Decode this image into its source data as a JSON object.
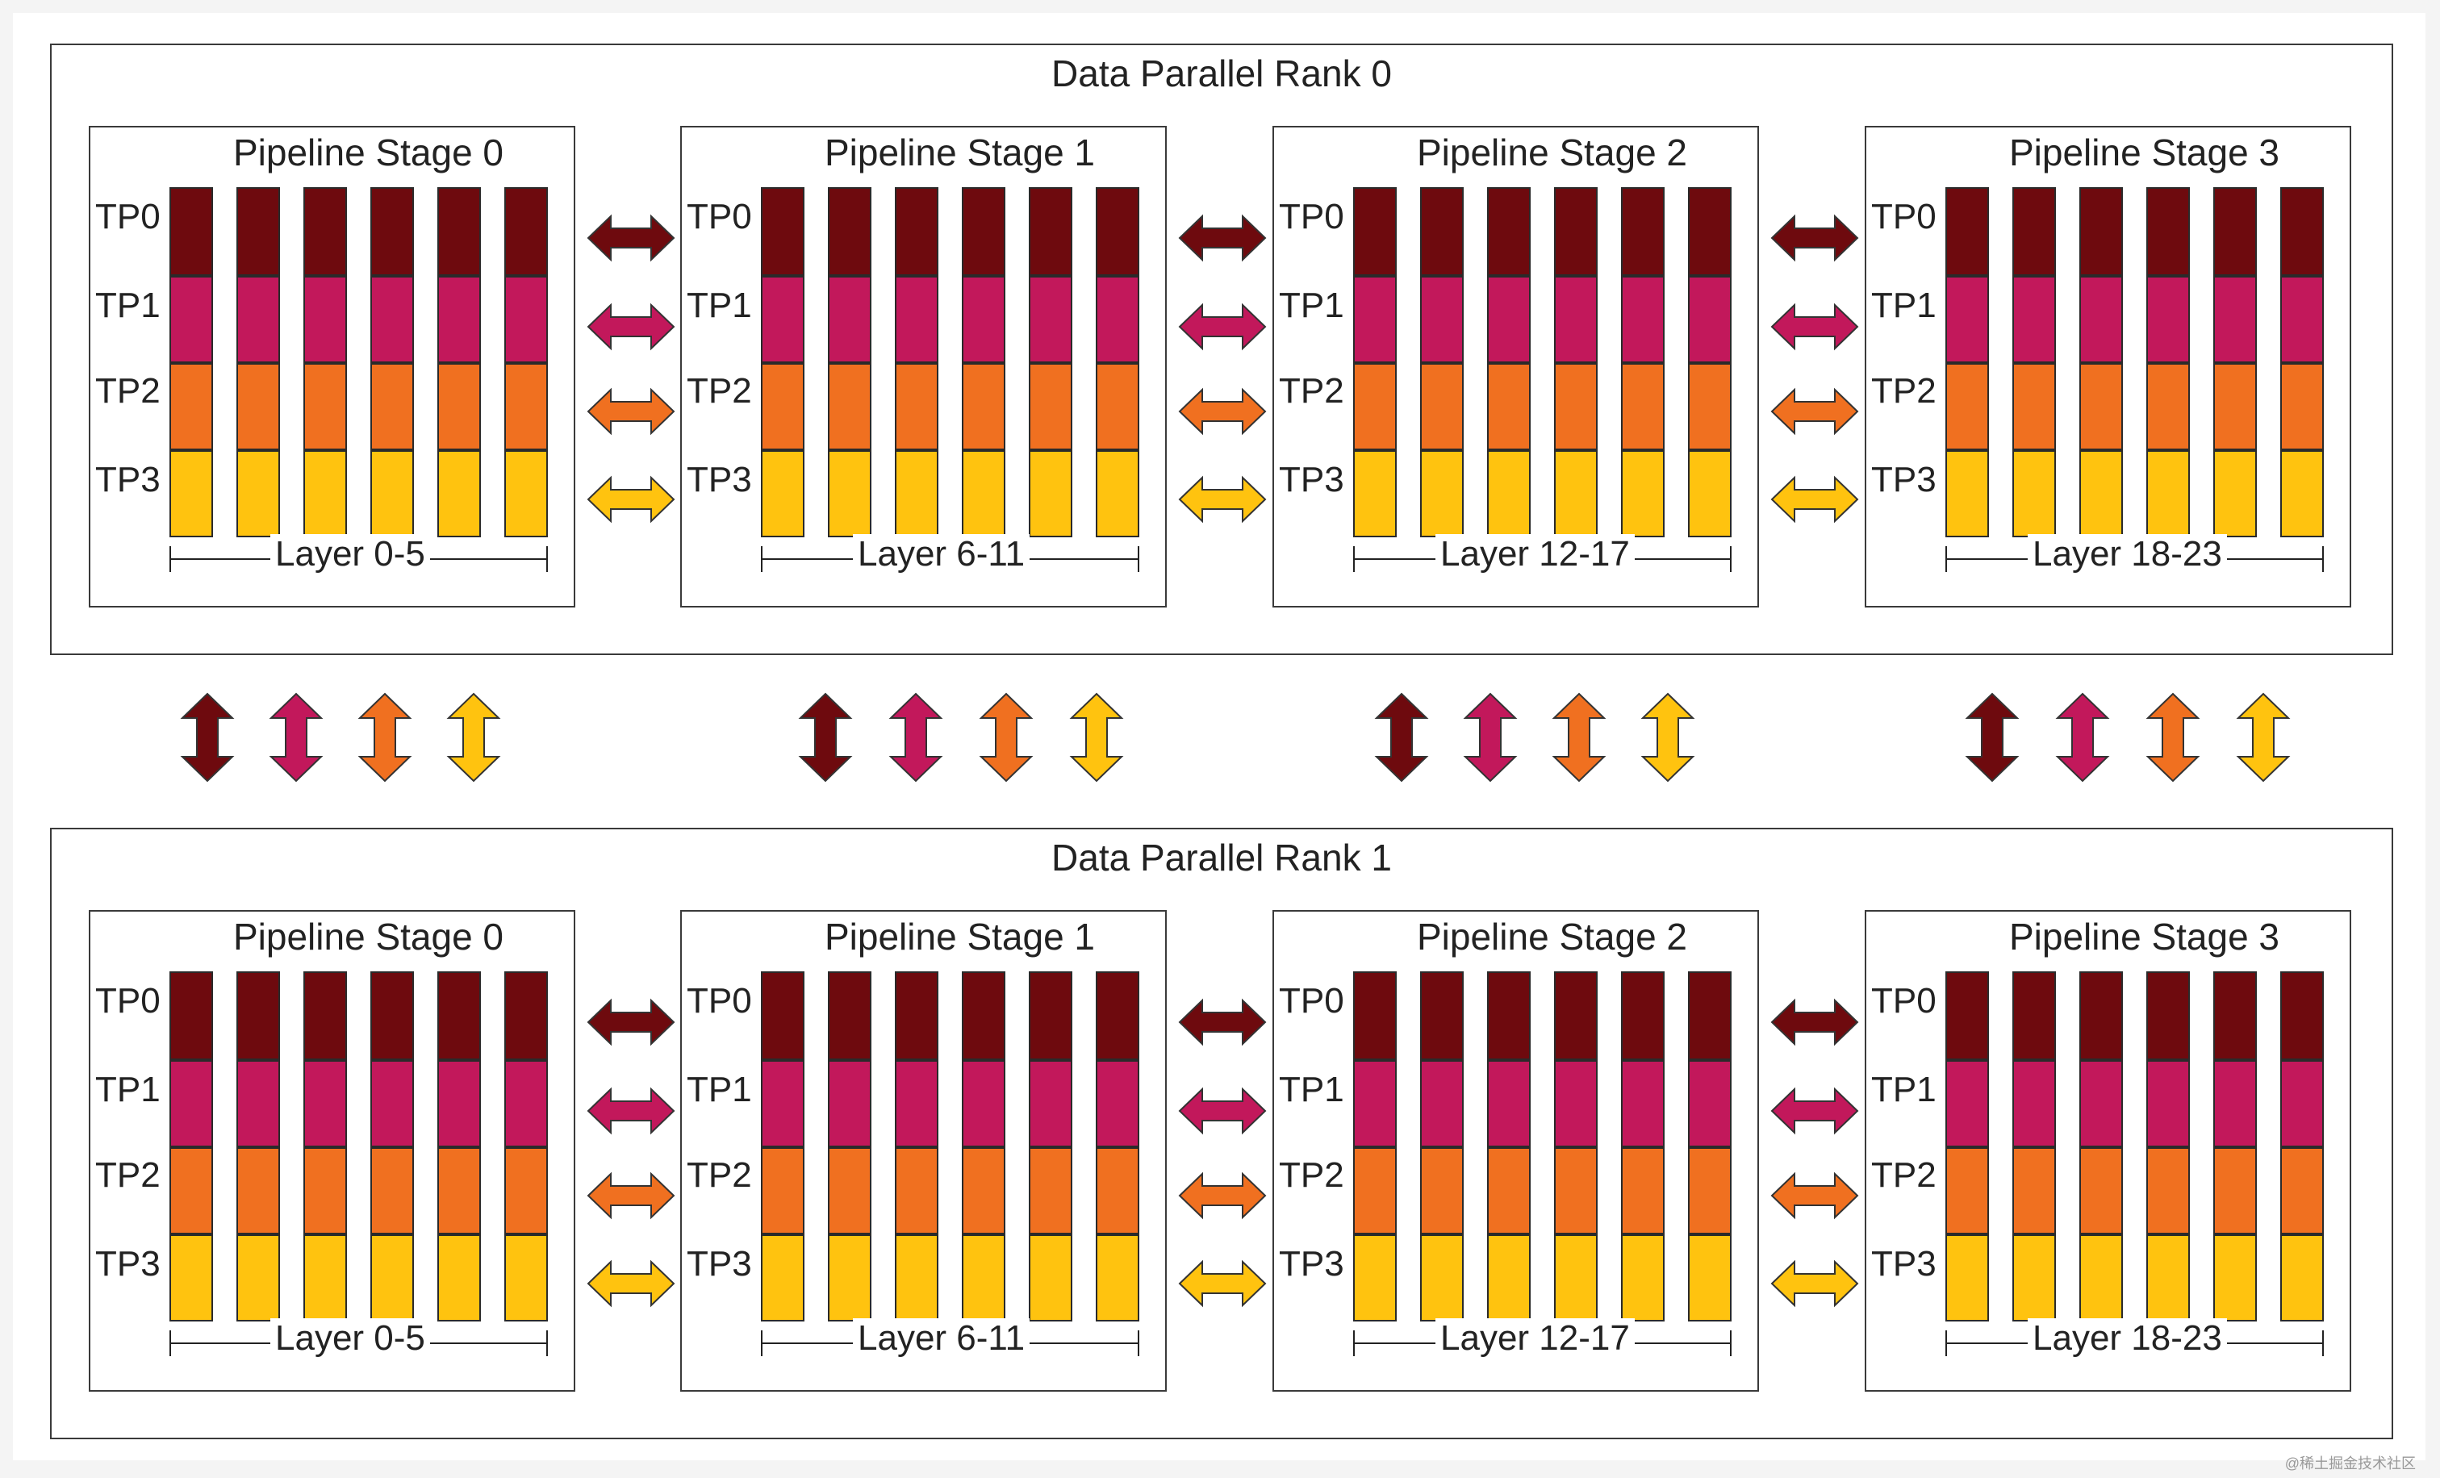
{
  "colors": {
    "tp0": "#6e0a0e",
    "tp1": "#c2185b",
    "tp2": "#f07020",
    "tp3": "#ffc30f",
    "border": "#2a2a2a"
  },
  "tp_labels": [
    "TP0",
    "TP1",
    "TP2",
    "TP3"
  ],
  "columns_per_stage": 6,
  "ranks": [
    {
      "title": "Data Parallel Rank 0",
      "stages": [
        {
          "title": "Pipeline Stage 0",
          "layers": "Layer 0-5"
        },
        {
          "title": "Pipeline Stage 1",
          "layers": "Layer 6-11"
        },
        {
          "title": "Pipeline Stage 2",
          "layers": "Layer 12-17"
        },
        {
          "title": "Pipeline Stage 3",
          "layers": "Layer 18-23"
        }
      ]
    },
    {
      "title": "Data Parallel Rank 1",
      "stages": [
        {
          "title": "Pipeline Stage 0",
          "layers": "Layer 0-5"
        },
        {
          "title": "Pipeline Stage 1",
          "layers": "Layer 6-11"
        },
        {
          "title": "Pipeline Stage 2",
          "layers": "Layer 12-17"
        },
        {
          "title": "Pipeline Stage 3",
          "layers": "Layer 18-23"
        }
      ]
    }
  ],
  "watermark": "@稀土掘金技术社区"
}
